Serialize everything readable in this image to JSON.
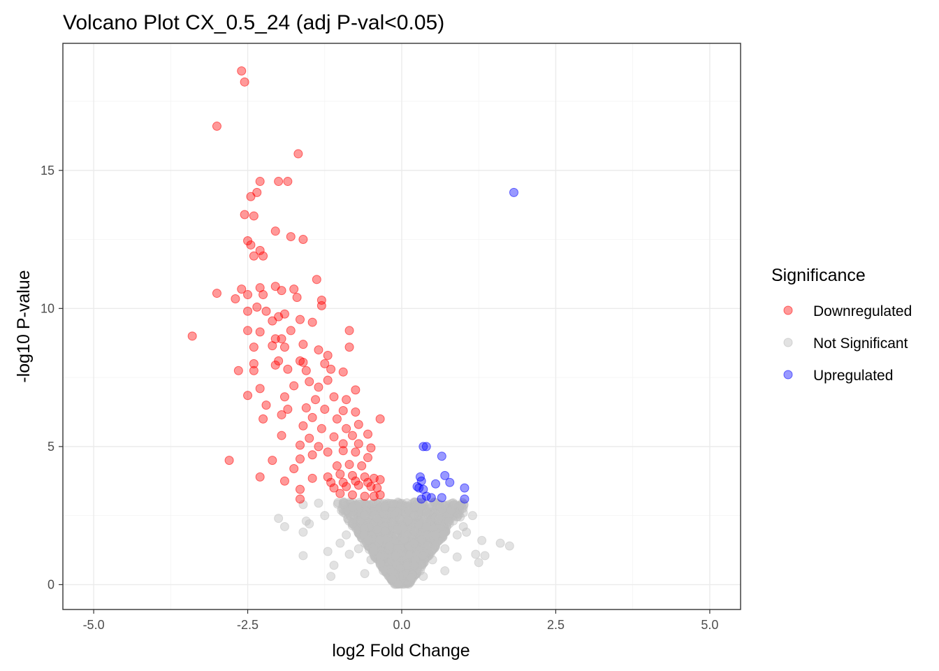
{
  "chart_data": {
    "type": "scatter",
    "title": "Volcano Plot CX_0.5_24 (adj P-val<0.05)",
    "xlabel": "log2 Fold Change",
    "ylabel": "-log10 P-value",
    "xlim": [
      -5.5,
      5.5
    ],
    "ylim": [
      -0.9,
      19.6
    ],
    "x_ticks": [
      -5.0,
      -2.5,
      0.0,
      2.5,
      5.0
    ],
    "x_tick_labels": [
      "-5.0",
      "-2.5",
      "0.0",
      "2.5",
      "5.0"
    ],
    "y_ticks": [
      0,
      5,
      10,
      15
    ],
    "y_tick_labels": [
      "0",
      "5",
      "10",
      "15"
    ],
    "grid": true,
    "legend": {
      "title": "Significance",
      "position": "right",
      "entries": [
        "Downregulated",
        "Not Significant",
        "Upregulated"
      ]
    },
    "series": [
      {
        "name": "Downregulated",
        "color": "#ff0000",
        "points": [
          [
            -2.6,
            18.6
          ],
          [
            -2.55,
            18.2
          ],
          [
            -3.0,
            16.6
          ],
          [
            -1.68,
            15.6
          ],
          [
            -2.3,
            14.6
          ],
          [
            -2.0,
            14.6
          ],
          [
            -1.85,
            14.6
          ],
          [
            -2.35,
            14.2
          ],
          [
            -2.45,
            14.05
          ],
          [
            -2.55,
            13.4
          ],
          [
            -2.4,
            13.35
          ],
          [
            -2.05,
            12.8
          ],
          [
            -1.8,
            12.6
          ],
          [
            -1.6,
            12.5
          ],
          [
            -2.5,
            12.45
          ],
          [
            -2.45,
            12.3
          ],
          [
            -2.3,
            12.1
          ],
          [
            -2.25,
            11.9
          ],
          [
            -2.4,
            11.9
          ],
          [
            -1.38,
            11.05
          ],
          [
            -3.0,
            10.55
          ],
          [
            -2.6,
            10.7
          ],
          [
            -2.5,
            10.5
          ],
          [
            -2.3,
            10.75
          ],
          [
            -2.25,
            10.5
          ],
          [
            -2.05,
            10.8
          ],
          [
            -1.95,
            10.65
          ],
          [
            -1.75,
            10.7
          ],
          [
            -1.7,
            10.4
          ],
          [
            -1.3,
            10.3
          ],
          [
            -1.3,
            10.1
          ],
          [
            -2.7,
            10.35
          ],
          [
            -2.5,
            9.9
          ],
          [
            -2.35,
            10.05
          ],
          [
            -2.2,
            9.9
          ],
          [
            -2.0,
            9.7
          ],
          [
            -1.9,
            9.8
          ],
          [
            -1.65,
            9.6
          ],
          [
            -1.45,
            9.5
          ],
          [
            -2.5,
            9.2
          ],
          [
            -2.3,
            9.15
          ],
          [
            -2.1,
            9.55
          ],
          [
            -1.8,
            9.2
          ],
          [
            -0.85,
            9.2
          ],
          [
            -3.4,
            9.0
          ],
          [
            -2.4,
            8.6
          ],
          [
            -2.05,
            8.9
          ],
          [
            -1.95,
            8.9
          ],
          [
            -1.9,
            8.6
          ],
          [
            -1.6,
            8.7
          ],
          [
            -2.1,
            8.65
          ],
          [
            -1.35,
            8.5
          ],
          [
            -0.85,
            8.6
          ],
          [
            -1.65,
            8.1
          ],
          [
            -2.4,
            8.0
          ],
          [
            -2.0,
            8.1
          ],
          [
            -1.6,
            8.05
          ],
          [
            -1.25,
            8.0
          ],
          [
            -1.2,
            8.3
          ],
          [
            -2.65,
            7.75
          ],
          [
            -2.4,
            7.75
          ],
          [
            -2.05,
            7.95
          ],
          [
            -1.85,
            7.8
          ],
          [
            -1.55,
            7.75
          ],
          [
            -1.15,
            7.8
          ],
          [
            -0.95,
            7.7
          ],
          [
            -1.5,
            7.35
          ],
          [
            -1.2,
            7.4
          ],
          [
            -2.3,
            7.1
          ],
          [
            -1.75,
            7.2
          ],
          [
            -1.35,
            7.15
          ],
          [
            -0.75,
            7.05
          ],
          [
            -2.5,
            6.85
          ],
          [
            -1.9,
            6.8
          ],
          [
            -1.4,
            6.7
          ],
          [
            -1.1,
            6.8
          ],
          [
            -0.9,
            6.7
          ],
          [
            -2.2,
            6.5
          ],
          [
            -1.85,
            6.35
          ],
          [
            -1.55,
            6.4
          ],
          [
            -1.25,
            6.35
          ],
          [
            -0.95,
            6.3
          ],
          [
            -0.75,
            6.25
          ],
          [
            -2.25,
            6.0
          ],
          [
            -1.95,
            6.15
          ],
          [
            -1.45,
            6.05
          ],
          [
            -1.05,
            6.0
          ],
          [
            -0.35,
            6.0
          ],
          [
            -1.6,
            5.75
          ],
          [
            -1.3,
            5.65
          ],
          [
            -0.9,
            5.65
          ],
          [
            -0.7,
            5.8
          ],
          [
            -1.95,
            5.4
          ],
          [
            -1.5,
            5.3
          ],
          [
            -1.1,
            5.35
          ],
          [
            -0.8,
            5.4
          ],
          [
            -0.55,
            5.45
          ],
          [
            -1.65,
            5.05
          ],
          [
            -1.35,
            5.0
          ],
          [
            -0.95,
            5.1
          ],
          [
            -0.7,
            5.1
          ],
          [
            -0.5,
            4.95
          ],
          [
            -2.8,
            4.5
          ],
          [
            -2.1,
            4.5
          ],
          [
            -1.65,
            4.55
          ],
          [
            -1.45,
            4.7
          ],
          [
            -1.2,
            4.8
          ],
          [
            -0.95,
            4.85
          ],
          [
            -0.75,
            4.8
          ],
          [
            -0.55,
            4.6
          ],
          [
            -1.75,
            4.2
          ],
          [
            -1.05,
            4.3
          ],
          [
            -0.85,
            4.35
          ],
          [
            -0.65,
            4.3
          ],
          [
            -2.3,
            3.9
          ],
          [
            -1.9,
            3.75
          ],
          [
            -1.45,
            3.85
          ],
          [
            -1.2,
            3.9
          ],
          [
            -1.0,
            4.0
          ],
          [
            -0.8,
            3.95
          ],
          [
            -0.6,
            3.9
          ],
          [
            -0.45,
            3.85
          ],
          [
            -0.35,
            3.8
          ],
          [
            -1.65,
            3.45
          ],
          [
            -1.1,
            3.5
          ],
          [
            -0.9,
            3.55
          ],
          [
            -0.7,
            3.6
          ],
          [
            -0.5,
            3.55
          ],
          [
            -0.4,
            3.5
          ],
          [
            -1.65,
            3.1
          ],
          [
            -1.0,
            3.3
          ],
          [
            -0.8,
            3.25
          ],
          [
            -0.6,
            3.2
          ],
          [
            -0.45,
            3.2
          ],
          [
            -0.35,
            3.25
          ],
          [
            -1.15,
            3.7
          ],
          [
            -0.95,
            3.7
          ],
          [
            -0.75,
            3.75
          ],
          [
            -0.55,
            3.7
          ]
        ]
      },
      {
        "name": "Not Significant",
        "color": "#bebebe",
        "points": [
          [
            -0.15,
            0.2
          ],
          [
            0.15,
            0.25
          ],
          [
            -0.3,
            0.5
          ],
          [
            0.3,
            0.5
          ],
          [
            -0.5,
            0.9
          ],
          [
            0.5,
            0.9
          ],
          [
            -0.7,
            1.3
          ],
          [
            0.7,
            1.3
          ],
          [
            -0.9,
            1.8
          ],
          [
            0.9,
            1.8
          ],
          [
            -0.4,
            2.0
          ],
          [
            0.4,
            2.1
          ],
          [
            -0.6,
            2.5
          ],
          [
            0.6,
            2.4
          ],
          [
            -0.8,
            2.8
          ],
          [
            0.8,
            2.7
          ],
          [
            -1.2,
            1.2
          ],
          [
            1.2,
            1.1
          ],
          [
            -0.2,
            1.4
          ],
          [
            0.2,
            1.5
          ],
          [
            -1.5,
            2.2
          ],
          [
            -1.9,
            2.1
          ],
          [
            -2.0,
            2.4
          ],
          [
            -1.6,
            1.9
          ],
          [
            -1.55,
            2.3
          ],
          [
            -1.6,
            2.9
          ],
          [
            -1.25,
            2.5
          ],
          [
            -1.0,
            1.5
          ],
          [
            -0.85,
            1.1
          ],
          [
            -1.1,
            0.7
          ],
          [
            -1.15,
            0.3
          ],
          [
            -0.6,
            0.4
          ],
          [
            -1.6,
            1.05
          ],
          [
            -1.35,
            2.95
          ],
          [
            -0.95,
            2.9
          ],
          [
            0.45,
            2.9
          ],
          [
            0.85,
            2.9
          ],
          [
            1.0,
            2.6
          ],
          [
            1.0,
            2.1
          ],
          [
            1.05,
            1.9
          ],
          [
            1.15,
            2.5
          ],
          [
            1.3,
            1.6
          ],
          [
            1.6,
            1.5
          ],
          [
            1.75,
            1.4
          ],
          [
            1.35,
            1.05
          ],
          [
            1.25,
            0.8
          ],
          [
            0.9,
            1.0
          ],
          [
            0.7,
            0.5
          ],
          [
            0.35,
            0.3
          ],
          [
            0.2,
            0.7
          ],
          [
            -0.35,
            1.0
          ],
          [
            -0.55,
            1.6
          ],
          [
            0.55,
            1.8
          ],
          [
            0.95,
            2.45
          ]
        ]
      },
      {
        "name": "Upregulated",
        "color": "#0000ff",
        "points": [
          [
            1.82,
            14.2
          ],
          [
            0.35,
            5.0
          ],
          [
            0.4,
            5.0
          ],
          [
            0.65,
            4.65
          ],
          [
            0.3,
            3.9
          ],
          [
            0.32,
            3.75
          ],
          [
            0.55,
            3.65
          ],
          [
            0.7,
            3.95
          ],
          [
            0.78,
            3.7
          ],
          [
            1.02,
            3.5
          ],
          [
            0.28,
            3.5
          ],
          [
            0.35,
            3.45
          ],
          [
            0.4,
            3.2
          ],
          [
            0.32,
            3.1
          ],
          [
            0.48,
            3.15
          ],
          [
            0.65,
            3.15
          ],
          [
            1.02,
            3.1
          ],
          [
            0.25,
            3.55
          ]
        ]
      }
    ]
  }
}
